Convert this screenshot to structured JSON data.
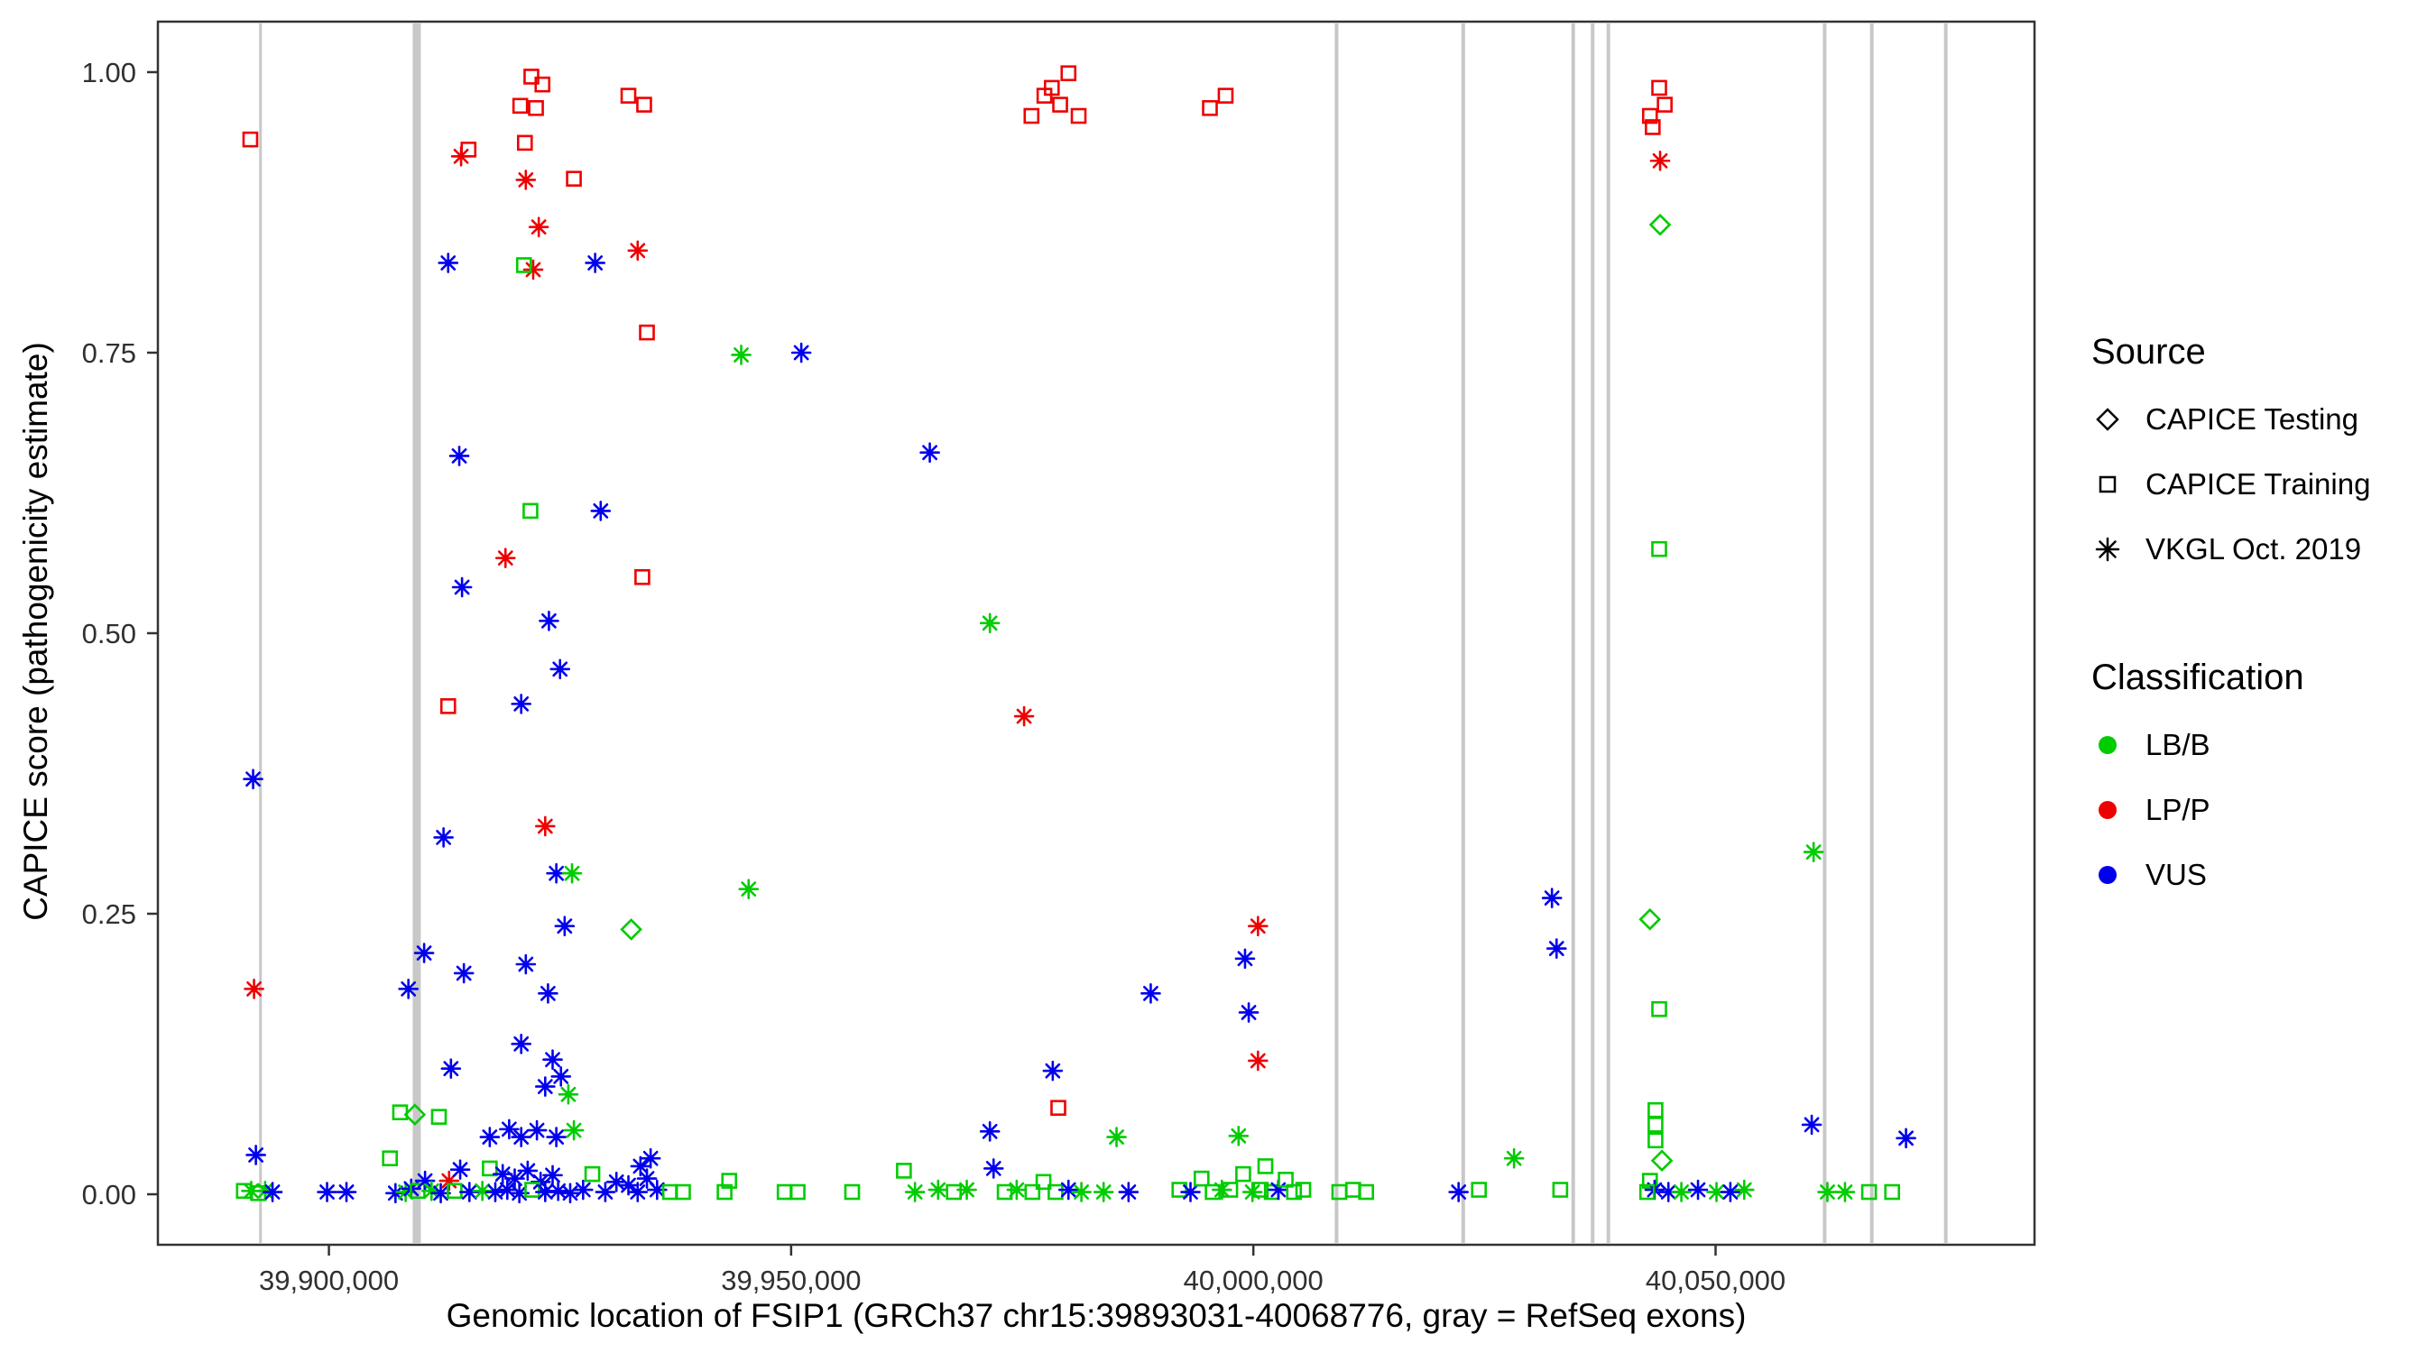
{
  "figure": {
    "x_axis_title": "Genomic location of FSIP1 (GRCh37 chr15:39893031-40068776, gray = RefSeq exons)",
    "y_axis_title": "CAPICE score (pathogenicity estimate)"
  },
  "legend": {
    "source": {
      "title": "Source",
      "items": [
        {
          "label": "CAPICE Testing",
          "shape": "diamond"
        },
        {
          "label": "CAPICE Training",
          "shape": "square"
        },
        {
          "label": "VKGL Oct. 2019",
          "shape": "asterisk"
        }
      ]
    },
    "classification": {
      "title": "Classification",
      "items": [
        {
          "label": "LB/B",
          "color": "#00CC00"
        },
        {
          "label": "LP/P",
          "color": "#EE0000"
        },
        {
          "label": "VUS",
          "color": "#0000EE"
        }
      ]
    }
  },
  "chart_data": {
    "type": "scatter",
    "title": "",
    "xlabel": "Genomic location of FSIP1 (GRCh37 chr15:39893031-40068776, gray = RefSeq exons)",
    "ylabel": "CAPICE score (pathogenicity estimate)",
    "xlim": [
      39881500,
      40084500
    ],
    "ylim": [
      -0.045,
      1.045
    ],
    "grid": false,
    "legend_position": "right",
    "x_ticks": [
      {
        "value": 39900000,
        "label": "39,900,000"
      },
      {
        "value": 39950000,
        "label": "39,950,000"
      },
      {
        "value": 40000000,
        "label": "40,000,000"
      },
      {
        "value": 40050000,
        "label": "40,050,000"
      }
    ],
    "y_ticks": [
      {
        "value": 0.0,
        "label": "0.00"
      },
      {
        "value": 0.25,
        "label": "0.25"
      },
      {
        "value": 0.5,
        "label": "0.50"
      },
      {
        "value": 0.75,
        "label": "0.75"
      },
      {
        "value": 1.0,
        "label": "1.00"
      }
    ],
    "exon_color": "#C8C8C8",
    "exon_note": "gray vertical lines = RefSeq exons",
    "exons": [
      {
        "x": 39892600,
        "w": 3
      },
      {
        "x": 39909500,
        "w": 9
      },
      {
        "x": 40009000,
        "w": 4
      },
      {
        "x": 40022700,
        "w": 4
      },
      {
        "x": 40034600,
        "w": 4
      },
      {
        "x": 40036700,
        "w": 4
      },
      {
        "x": 40038400,
        "w": 4
      },
      {
        "x": 40061800,
        "w": 4
      },
      {
        "x": 40066900,
        "w": 4
      },
      {
        "x": 40074900,
        "w": 4
      }
    ],
    "colors": {
      "LB/B": "#00CC00",
      "LP/P": "#EE0000",
      "VUS": "#0000EE"
    },
    "shape_source_map": {
      "di": "CAPICE Testing",
      "sq": "CAPICE Training",
      "as": "VKGL Oct. 2019"
    },
    "class_map": {
      "LB": "LB/B",
      "LP": "LP/P",
      "VUS": "VUS"
    },
    "points": [
      [
        39890800,
        0.003,
        "sq",
        "LB"
      ],
      [
        39891500,
        0.94,
        "sq",
        "LP"
      ],
      [
        39891800,
        0.37,
        "as",
        "VUS"
      ],
      [
        39891900,
        0.183,
        "as",
        "LP"
      ],
      [
        39892100,
        0.035,
        "as",
        "VUS"
      ],
      [
        39891600,
        0.003,
        "as",
        "LB"
      ],
      [
        39892400,
        0.001,
        "sq",
        "LB"
      ],
      [
        39893100,
        0.003,
        "as",
        "LB"
      ],
      [
        39893900,
        0.002,
        "as",
        "VUS"
      ],
      [
        39899800,
        0.002,
        "as",
        "VUS"
      ],
      [
        39901900,
        0.002,
        "as",
        "VUS"
      ],
      [
        39906600,
        0.032,
        "sq",
        "LB"
      ],
      [
        39907200,
        0.001,
        "as",
        "VUS"
      ],
      [
        39907700,
        0.073,
        "sq",
        "LB"
      ],
      [
        39908300,
        0.002,
        "as",
        "LB"
      ],
      [
        39908600,
        0.183,
        "as",
        "VUS"
      ],
      [
        39909300,
        0.071,
        "di",
        "LB"
      ],
      [
        39910300,
        0.215,
        "as",
        "VUS"
      ],
      [
        39911900,
        0.069,
        "sq",
        "LB"
      ],
      [
        39912400,
        0.318,
        "as",
        "VUS"
      ],
      [
        39912900,
        0.83,
        "as",
        "VUS"
      ],
      [
        39912900,
        0.435,
        "sq",
        "LP"
      ],
      [
        39913200,
        0.112,
        "as",
        "VUS"
      ],
      [
        39914100,
        0.658,
        "as",
        "VUS"
      ],
      [
        39914400,
        0.541,
        "as",
        "VUS"
      ],
      [
        39914300,
        0.925,
        "as",
        "LP"
      ],
      [
        39915100,
        0.931,
        "sq",
        "LP"
      ],
      [
        39914600,
        0.197,
        "as",
        "VUS"
      ],
      [
        39908900,
        0.005,
        "as",
        "VUS"
      ],
      [
        39909600,
        0.003,
        "sq",
        "LB"
      ],
      [
        39910400,
        0.012,
        "as",
        "VUS"
      ],
      [
        39911100,
        0.003,
        "as",
        "LB"
      ],
      [
        39912100,
        0.001,
        "as",
        "VUS"
      ],
      [
        39913000,
        0.012,
        "as",
        "LP"
      ],
      [
        39913600,
        0.003,
        "sq",
        "LB"
      ],
      [
        39914200,
        0.022,
        "as",
        "VUS"
      ],
      [
        39915200,
        0.002,
        "as",
        "VUS"
      ],
      [
        39921900,
        0.996,
        "sq",
        "LP"
      ],
      [
        39923100,
        0.989,
        "sq",
        "LP"
      ],
      [
        39920700,
        0.97,
        "sq",
        "LP"
      ],
      [
        39922400,
        0.968,
        "sq",
        "LP"
      ],
      [
        39921200,
        0.937,
        "sq",
        "LP"
      ],
      [
        39926500,
        0.905,
        "sq",
        "LP"
      ],
      [
        39921300,
        0.904,
        "as",
        "LP"
      ],
      [
        39922700,
        0.862,
        "as",
        "LP"
      ],
      [
        39922100,
        0.824,
        "as",
        "LP"
      ],
      [
        39921100,
        0.828,
        "sq",
        "LB"
      ],
      [
        39928800,
        0.83,
        "as",
        "VUS"
      ],
      [
        39921800,
        0.609,
        "sq",
        "LB"
      ],
      [
        39929400,
        0.609,
        "as",
        "VUS"
      ],
      [
        39919100,
        0.567,
        "as",
        "LP"
      ],
      [
        39923800,
        0.511,
        "as",
        "VUS"
      ],
      [
        39925000,
        0.468,
        "as",
        "VUS"
      ],
      [
        39920800,
        0.437,
        "as",
        "VUS"
      ],
      [
        39923400,
        0.328,
        "as",
        "LP"
      ],
      [
        39924600,
        0.286,
        "as",
        "VUS"
      ],
      [
        39926300,
        0.286,
        "as",
        "LB"
      ],
      [
        39925500,
        0.239,
        "as",
        "VUS"
      ],
      [
        39921300,
        0.205,
        "as",
        "VUS"
      ],
      [
        39923700,
        0.179,
        "as",
        "VUS"
      ],
      [
        39920800,
        0.134,
        "as",
        "VUS"
      ],
      [
        39924200,
        0.12,
        "as",
        "VUS"
      ],
      [
        39925100,
        0.105,
        "as",
        "VUS"
      ],
      [
        39923400,
        0.096,
        "as",
        "VUS"
      ],
      [
        39925900,
        0.089,
        "as",
        "LB"
      ],
      [
        39917400,
        0.051,
        "as",
        "VUS"
      ],
      [
        39919500,
        0.058,
        "as",
        "VUS"
      ],
      [
        39920800,
        0.051,
        "as",
        "VUS"
      ],
      [
        39922500,
        0.057,
        "as",
        "VUS"
      ],
      [
        39924600,
        0.051,
        "as",
        "VUS"
      ],
      [
        39926500,
        0.057,
        "as",
        "LB"
      ],
      [
        39917400,
        0.023,
        "sq",
        "LB"
      ],
      [
        39918800,
        0.018,
        "as",
        "VUS"
      ],
      [
        39920100,
        0.014,
        "as",
        "VUS"
      ],
      [
        39921500,
        0.021,
        "as",
        "VUS"
      ],
      [
        39922900,
        0.011,
        "as",
        "VUS"
      ],
      [
        39924200,
        0.017,
        "as",
        "VUS"
      ],
      [
        39916600,
        0.003,
        "as",
        "LB"
      ],
      [
        39918000,
        0.002,
        "as",
        "VUS"
      ],
      [
        39919300,
        0.004,
        "as",
        "VUS"
      ],
      [
        39920600,
        0.001,
        "as",
        "VUS"
      ],
      [
        39922000,
        0.004,
        "sq",
        "LB"
      ],
      [
        39923400,
        0.002,
        "as",
        "VUS"
      ],
      [
        39924800,
        0.003,
        "as",
        "VUS"
      ],
      [
        39926100,
        0.001,
        "as",
        "VUS"
      ],
      [
        39927500,
        0.004,
        "as",
        "VUS"
      ],
      [
        39928500,
        0.018,
        "sq",
        "LB"
      ],
      [
        39929900,
        0.002,
        "as",
        "VUS"
      ],
      [
        39931100,
        0.011,
        "as",
        "VUS"
      ],
      [
        39932400,
        0.979,
        "sq",
        "LP"
      ],
      [
        39934100,
        0.971,
        "sq",
        "LP"
      ],
      [
        39933400,
        0.841,
        "as",
        "LP"
      ],
      [
        39934400,
        0.768,
        "sq",
        "LP"
      ],
      [
        39933900,
        0.55,
        "sq",
        "LP"
      ],
      [
        39932700,
        0.236,
        "di",
        "LB"
      ],
      [
        39932400,
        0.008,
        "as",
        "VUS"
      ],
      [
        39933400,
        0.002,
        "as",
        "VUS"
      ],
      [
        39934400,
        0.014,
        "as",
        "VUS"
      ],
      [
        39935500,
        0.004,
        "as",
        "VUS"
      ],
      [
        39933700,
        0.025,
        "as",
        "VUS"
      ],
      [
        39934800,
        0.032,
        "as",
        "VUS"
      ],
      [
        39936900,
        0.002,
        "sq",
        "LB"
      ],
      [
        39938300,
        0.002,
        "sq",
        "LB"
      ],
      [
        39942800,
        0.002,
        "sq",
        "LB"
      ],
      [
        39943300,
        0.012,
        "sq",
        "LB"
      ],
      [
        39944600,
        0.748,
        "as",
        "LB"
      ],
      [
        39945400,
        0.272,
        "as",
        "LB"
      ],
      [
        39949300,
        0.002,
        "sq",
        "LB"
      ],
      [
        39950700,
        0.002,
        "sq",
        "LB"
      ],
      [
        39951100,
        0.75,
        "as",
        "VUS"
      ],
      [
        39956600,
        0.002,
        "sq",
        "LB"
      ],
      [
        39962200,
        0.021,
        "sq",
        "LB"
      ],
      [
        39963400,
        0.002,
        "as",
        "LB"
      ],
      [
        39965000,
        0.661,
        "as",
        "VUS"
      ],
      [
        39965900,
        0.004,
        "as",
        "LB"
      ],
      [
        39967600,
        0.002,
        "sq",
        "LB"
      ],
      [
        39969000,
        0.004,
        "as",
        "LB"
      ],
      [
        39971500,
        0.509,
        "as",
        "LB"
      ],
      [
        39971500,
        0.056,
        "as",
        "VUS"
      ],
      [
        39971900,
        0.023,
        "as",
        "VUS"
      ],
      [
        39973100,
        0.002,
        "sq",
        "LB"
      ],
      [
        39974400,
        0.004,
        "as",
        "LB"
      ],
      [
        39976000,
        0.961,
        "sq",
        "LP"
      ],
      [
        39977400,
        0.979,
        "sq",
        "LP"
      ],
      [
        39978200,
        0.986,
        "sq",
        "LP"
      ],
      [
        39979100,
        0.971,
        "sq",
        "LP"
      ],
      [
        39980000,
        0.999,
        "sq",
        "LP"
      ],
      [
        39981100,
        0.961,
        "sq",
        "LP"
      ],
      [
        39975200,
        0.426,
        "as",
        "LP"
      ],
      [
        39978300,
        0.11,
        "as",
        "VUS"
      ],
      [
        39978900,
        0.077,
        "sq",
        "LP"
      ],
      [
        39976100,
        0.002,
        "sq",
        "LB"
      ],
      [
        39977300,
        0.011,
        "sq",
        "LB"
      ],
      [
        39978600,
        0.002,
        "sq",
        "LB"
      ],
      [
        39980000,
        0.004,
        "as",
        "VUS"
      ],
      [
        39981400,
        0.002,
        "as",
        "LB"
      ],
      [
        39983800,
        0.002,
        "as",
        "LB"
      ],
      [
        39985200,
        0.051,
        "as",
        "LB"
      ],
      [
        39986500,
        0.002,
        "as",
        "VUS"
      ],
      [
        39988900,
        0.179,
        "as",
        "VUS"
      ],
      [
        39992000,
        0.004,
        "sq",
        "LB"
      ],
      [
        39993200,
        0.002,
        "as",
        "VUS"
      ],
      [
        39994400,
        0.014,
        "sq",
        "LB"
      ],
      [
        39995300,
        0.968,
        "sq",
        "LP"
      ],
      [
        39997000,
        0.979,
        "sq",
        "LP"
      ],
      [
        39995600,
        0.002,
        "sq",
        "LB"
      ],
      [
        39996600,
        0.004,
        "as",
        "LB"
      ],
      [
        39998400,
        0.052,
        "as",
        "LB"
      ],
      [
        39999100,
        0.21,
        "as",
        "VUS"
      ],
      [
        39999500,
        0.162,
        "as",
        "VUS"
      ],
      [
        40000500,
        0.239,
        "as",
        "LP"
      ],
      [
        40000500,
        0.119,
        "as",
        "LP"
      ],
      [
        39997500,
        0.004,
        "sq",
        "LB"
      ],
      [
        39998900,
        0.018,
        "sq",
        "LB"
      ],
      [
        39999900,
        0.002,
        "as",
        "LB"
      ],
      [
        40000800,
        0.004,
        "sq",
        "LB"
      ],
      [
        40001300,
        0.025,
        "sq",
        "LB"
      ],
      [
        40002000,
        0.002,
        "sq",
        "LB"
      ],
      [
        40002700,
        0.004,
        "as",
        "VUS"
      ],
      [
        40003500,
        0.013,
        "sq",
        "LB"
      ],
      [
        40004400,
        0.002,
        "sq",
        "LB"
      ],
      [
        40005400,
        0.004,
        "sq",
        "LB"
      ],
      [
        40009300,
        0.002,
        "sq",
        "LB"
      ],
      [
        40010800,
        0.004,
        "sq",
        "LB"
      ],
      [
        40012200,
        0.002,
        "sq",
        "LB"
      ],
      [
        40022200,
        0.002,
        "as",
        "VUS"
      ],
      [
        40024400,
        0.004,
        "sq",
        "LB"
      ],
      [
        40028200,
        0.032,
        "as",
        "LB"
      ],
      [
        40032300,
        0.264,
        "as",
        "VUS"
      ],
      [
        40032800,
        0.219,
        "as",
        "VUS"
      ],
      [
        40033200,
        0.004,
        "sq",
        "LB"
      ],
      [
        40042900,
        0.961,
        "sq",
        "LP"
      ],
      [
        40043200,
        0.951,
        "sq",
        "LP"
      ],
      [
        40043900,
        0.986,
        "sq",
        "LP"
      ],
      [
        40044500,
        0.971,
        "sq",
        "LP"
      ],
      [
        40044000,
        0.921,
        "as",
        "LP"
      ],
      [
        40044000,
        0.864,
        "di",
        "LB"
      ],
      [
        40043900,
        0.575,
        "sq",
        "LB"
      ],
      [
        40042900,
        0.245,
        "di",
        "LB"
      ],
      [
        40043900,
        0.165,
        "sq",
        "LB"
      ],
      [
        40043500,
        0.075,
        "sq",
        "LB"
      ],
      [
        40043500,
        0.062,
        "sq",
        "LB"
      ],
      [
        40043500,
        0.048,
        "sq",
        "LB"
      ],
      [
        40044200,
        0.03,
        "di",
        "LB"
      ],
      [
        40042900,
        0.012,
        "sq",
        "LB"
      ],
      [
        40043400,
        0.004,
        "as",
        "VUS"
      ],
      [
        40042600,
        0.002,
        "sq",
        "LB"
      ],
      [
        40044900,
        0.002,
        "as",
        "VUS"
      ],
      [
        40046300,
        0.002,
        "as",
        "LB"
      ],
      [
        40048100,
        0.004,
        "as",
        "VUS"
      ],
      [
        40050100,
        0.002,
        "as",
        "LB"
      ],
      [
        40051600,
        0.002,
        "as",
        "VUS"
      ],
      [
        40053100,
        0.004,
        "as",
        "LB"
      ],
      [
        40060400,
        0.062,
        "as",
        "VUS"
      ],
      [
        40060600,
        0.305,
        "as",
        "LB"
      ],
      [
        40062100,
        0.002,
        "as",
        "LB"
      ],
      [
        40064000,
        0.002,
        "as",
        "LB"
      ],
      [
        40066600,
        0.002,
        "sq",
        "LB"
      ],
      [
        40069100,
        0.002,
        "sq",
        "LB"
      ],
      [
        40070600,
        0.05,
        "as",
        "VUS"
      ]
    ]
  }
}
